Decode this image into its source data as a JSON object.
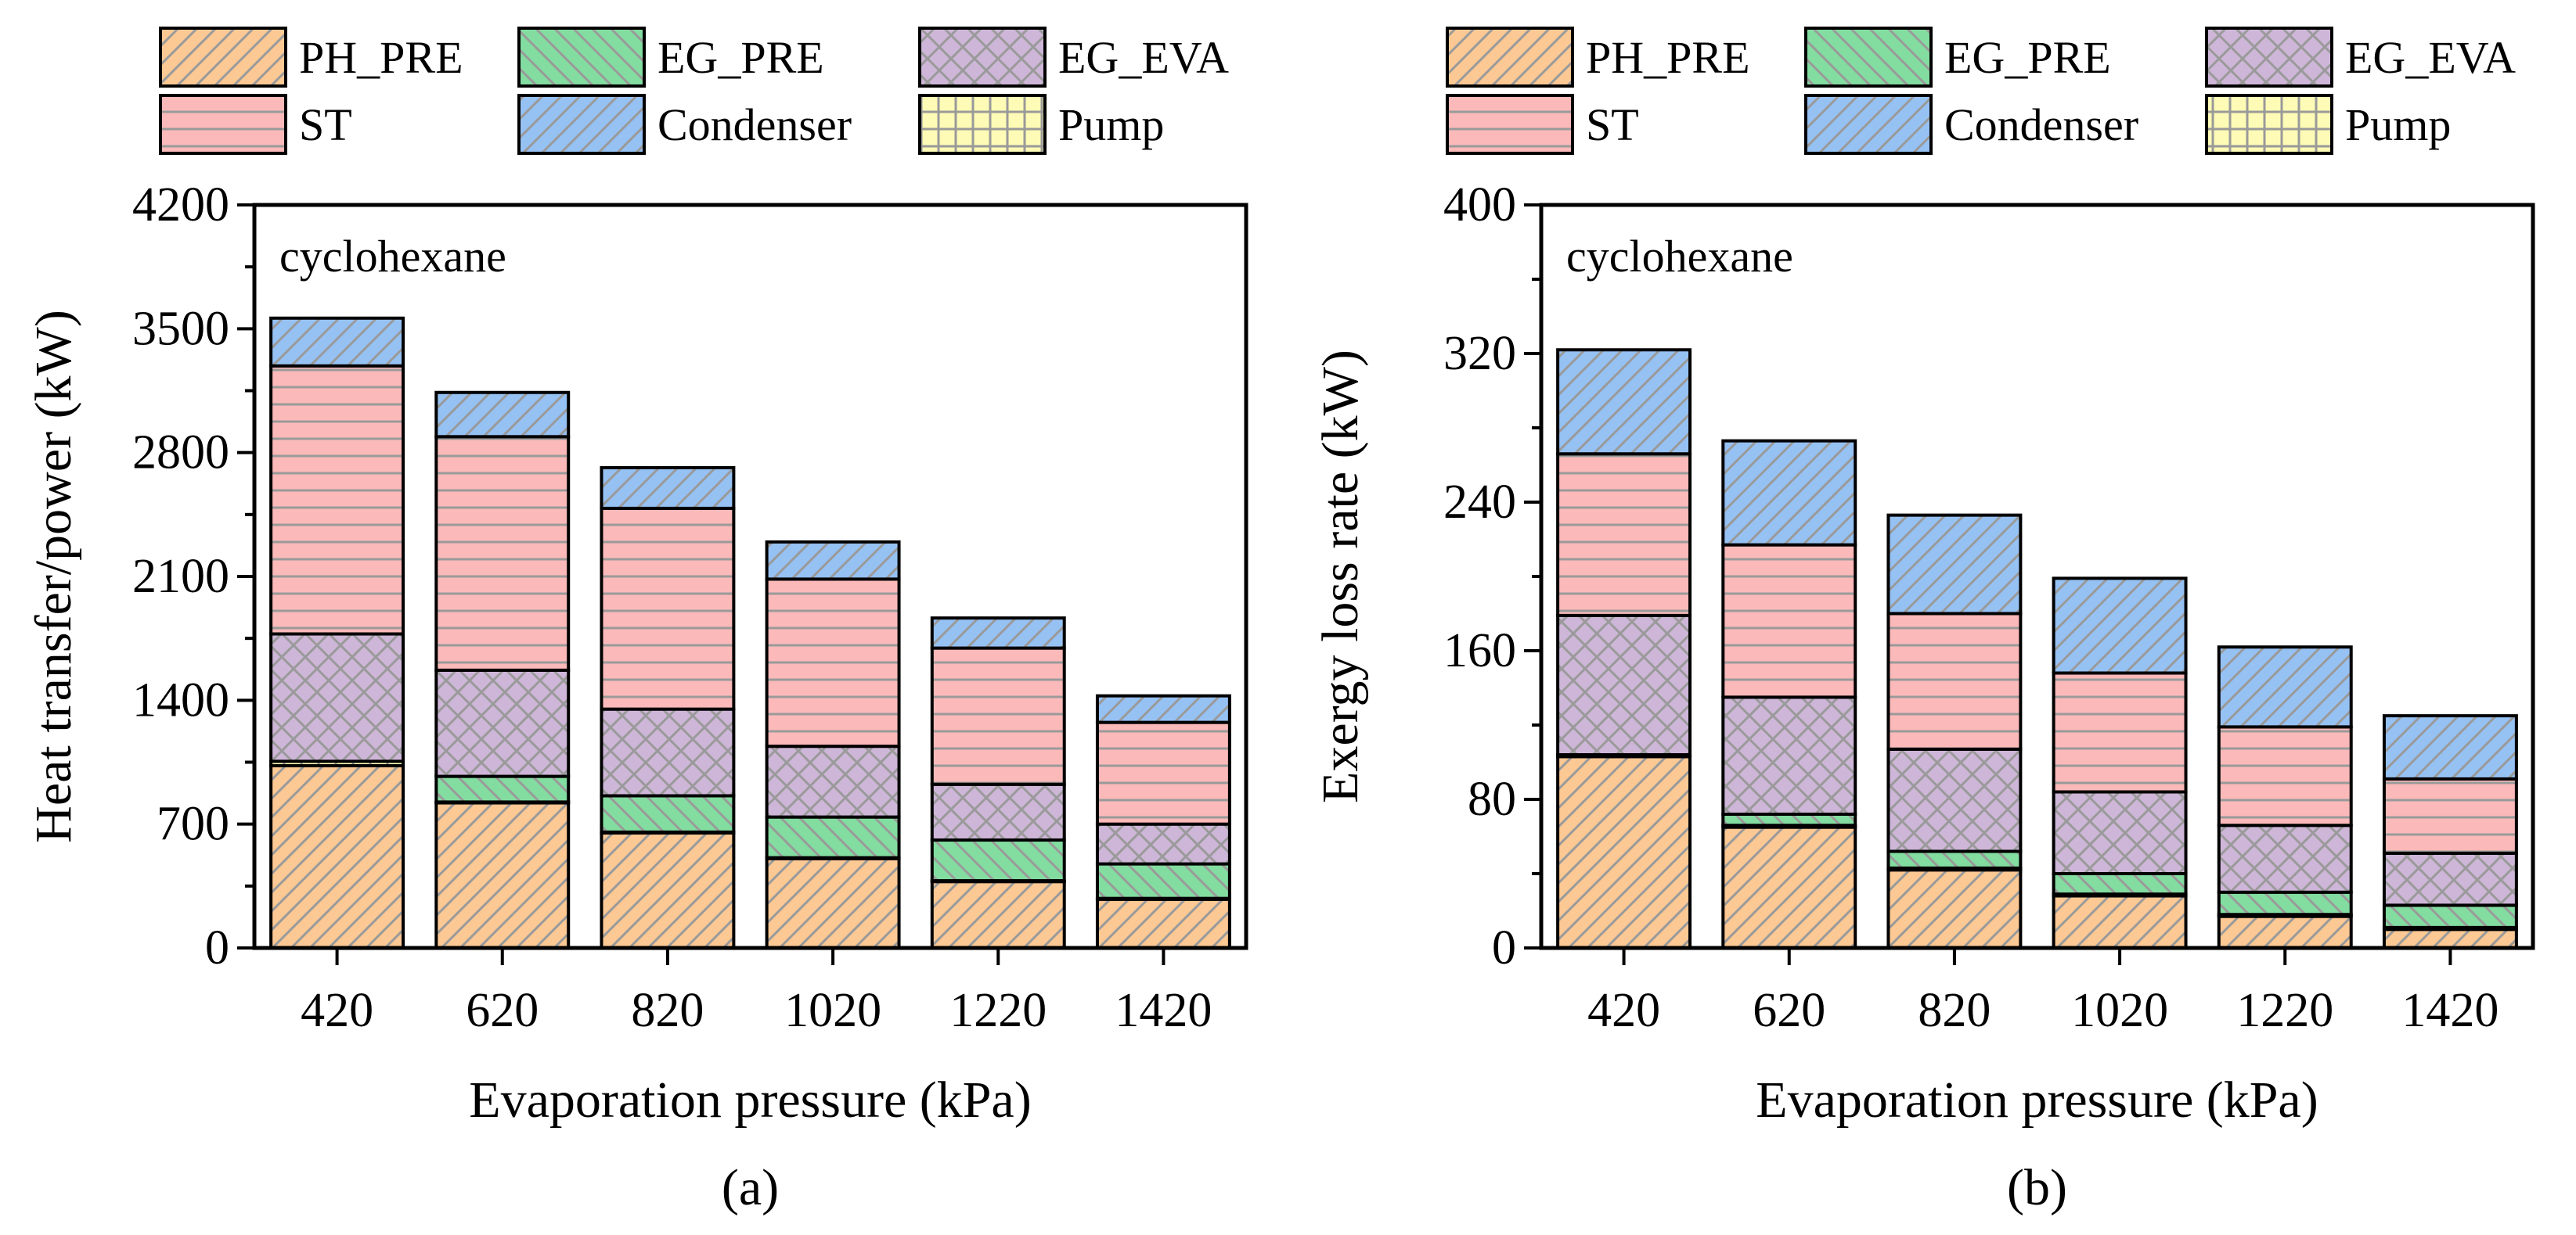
{
  "figure": {
    "chart_data": [
      {
        "type": "stacked-bar",
        "panel_label": "(a)",
        "annotation": "cyclohexane",
        "xlabel": "Evaporation pressure (kPa)",
        "ylabel": "Heat transfer/power (kW)",
        "ylim": [
          0,
          4200
        ],
        "yticks": [
          0,
          700,
          1400,
          2100,
          2800,
          3500,
          4200
        ],
        "ytick_labels": [
          "0",
          "700",
          "1400",
          "2100",
          "2800",
          "3500",
          "4200"
        ],
        "categories": [
          "420",
          "620",
          "820",
          "1020",
          "1220",
          "1420"
        ],
        "series": [
          {
            "name": "PH_PRE",
            "values": [
              1030,
              820,
              650,
              505,
              375,
              275
            ]
          },
          {
            "name": "Pump",
            "values": [
              25,
              5,
              5,
              5,
              5,
              5
            ]
          },
          {
            "name": "EG_PRE",
            "values": [
              0,
              145,
              205,
              230,
              230,
              195
            ]
          },
          {
            "name": "EG_EVA",
            "values": [
              720,
              600,
              490,
              400,
              315,
              225
            ]
          },
          {
            "name": "ST",
            "values": [
              1515,
              1320,
              1135,
              945,
              770,
              575
            ]
          },
          {
            "name": "Condenser",
            "values": [
              270,
              250,
              230,
              210,
              170,
              150
            ]
          }
        ],
        "legend_position": "top"
      },
      {
        "type": "stacked-bar",
        "panel_label": "(b)",
        "annotation": "cyclohexane",
        "xlabel": "Evaporation pressure (kPa)",
        "ylabel": "Exergy loss rate (kW)",
        "ylim": [
          0,
          400
        ],
        "yticks": [
          0,
          80,
          160,
          240,
          320,
          400
        ],
        "ytick_labels": [
          "0",
          "80",
          "160",
          "240",
          "320",
          "400"
        ],
        "categories": [
          "420",
          "620",
          "820",
          "1020",
          "1220",
          "1420"
        ],
        "series": [
          {
            "name": "PH_PRE",
            "values": [
              103,
              65,
              42,
              28,
              17,
              10
            ]
          },
          {
            "name": "Pump",
            "values": [
              1,
              1,
              1,
              1,
              1,
              1
            ]
          },
          {
            "name": "EG_PRE",
            "values": [
              0,
              6,
              9,
              11,
              12,
              12
            ]
          },
          {
            "name": "EG_EVA",
            "values": [
              75,
              63,
              55,
              44,
              36,
              28
            ]
          },
          {
            "name": "ST",
            "values": [
              87,
              82,
              73,
              64,
              53,
              40
            ]
          },
          {
            "name": "Condenser",
            "values": [
              56,
              56,
              53,
              51,
              43,
              34
            ]
          }
        ],
        "legend_position": "top"
      }
    ],
    "legend": {
      "items": [
        "PH_PRE",
        "EG_PRE",
        "EG_EVA",
        "ST",
        "Condenser",
        "Pump"
      ]
    },
    "colors": {
      "PH_PRE": "#FCC894",
      "EG_PRE": "#83DCA0",
      "EG_EVA": "#CEB6D8",
      "ST": "#FCB9B9",
      "Condenser": "#96C1F3",
      "Pump": "#FDFBB5",
      "hatch": "#9a9a9a"
    }
  }
}
